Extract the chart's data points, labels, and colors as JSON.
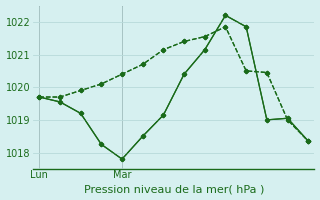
{
  "line1_x": [
    0,
    1,
    2,
    3,
    4,
    5,
    6,
    7,
    8,
    9,
    10,
    11,
    12,
    13
  ],
  "line1_y": [
    1019.7,
    1019.7,
    1019.9,
    1020.1,
    1020.4,
    1020.7,
    1021.15,
    1021.4,
    1021.55,
    1021.85,
    1020.5,
    1020.45,
    1019.0,
    1018.35
  ],
  "line2_x": [
    0,
    1,
    2,
    3,
    4,
    5,
    6,
    7,
    8,
    9,
    10,
    11,
    12,
    13
  ],
  "line2_y": [
    1019.7,
    1019.55,
    1019.2,
    1018.25,
    1017.8,
    1018.5,
    1019.15,
    1020.4,
    1021.15,
    1022.2,
    1021.85,
    1019.0,
    1019.05,
    1018.35
  ],
  "line_color": "#1a6b1a",
  "background_color": "#d6f0f0",
  "grid_color": "#b8dada",
  "ylim": [
    1017.5,
    1022.5
  ],
  "yticks": [
    1018,
    1019,
    1020,
    1021,
    1022
  ],
  "xlabel": "Pression niveau de la mer( hPa )",
  "xtick_labels": [
    "Lun",
    "Mar"
  ],
  "xtick_positions": [
    0,
    4
  ],
  "vline_x": [
    0,
    4
  ],
  "tick_fontsize": 7,
  "label_fontsize": 8
}
